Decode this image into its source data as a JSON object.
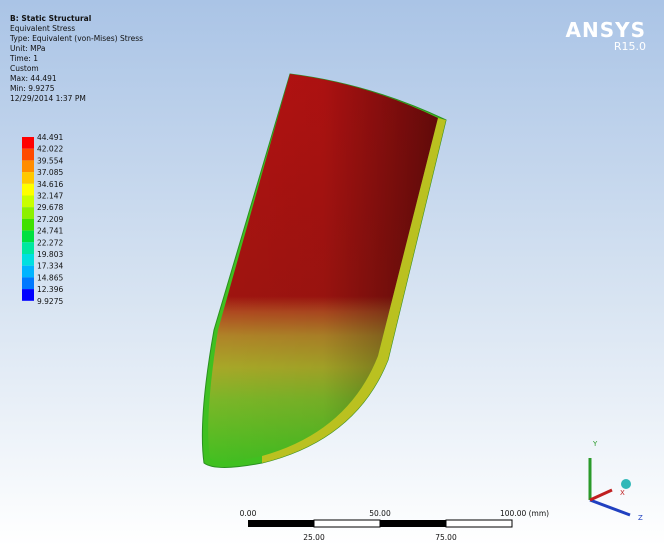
{
  "header": {
    "title": "B: Static Structural",
    "lines": [
      "Equivalent Stress",
      "Type: Equivalent (von-Mises) Stress",
      "Unit: MPa",
      "Time: 1",
      "Custom",
      "Max: 44.491",
      "Min: 9.9275",
      "12/29/2014 1:37 PM"
    ]
  },
  "logo": {
    "name": "ANSYS",
    "version": "R15.0"
  },
  "legend": {
    "labels": [
      "44.491",
      "42.022",
      "39.554",
      "37.085",
      "34.616",
      "32.147",
      "29.678",
      "27.209",
      "24.741",
      "22.272",
      "19.803",
      "17.334",
      "14.865",
      "12.396",
      "9.9275"
    ],
    "colors": [
      "#ff0000",
      "#ff4a00",
      "#ff8c00",
      "#ffc800",
      "#ffff00",
      "#c8ff00",
      "#8cf000",
      "#40e000",
      "#00e040",
      "#00e8a0",
      "#00e0e0",
      "#00b4ff",
      "#0078ff",
      "#0000ff"
    ]
  },
  "scale": {
    "top": [
      "0.00",
      "50.00",
      "100.00 (mm)"
    ],
    "bottom": [
      "25.00",
      "75.00"
    ]
  },
  "triad": {
    "y": "Y",
    "x": "X",
    "z": "Z"
  }
}
